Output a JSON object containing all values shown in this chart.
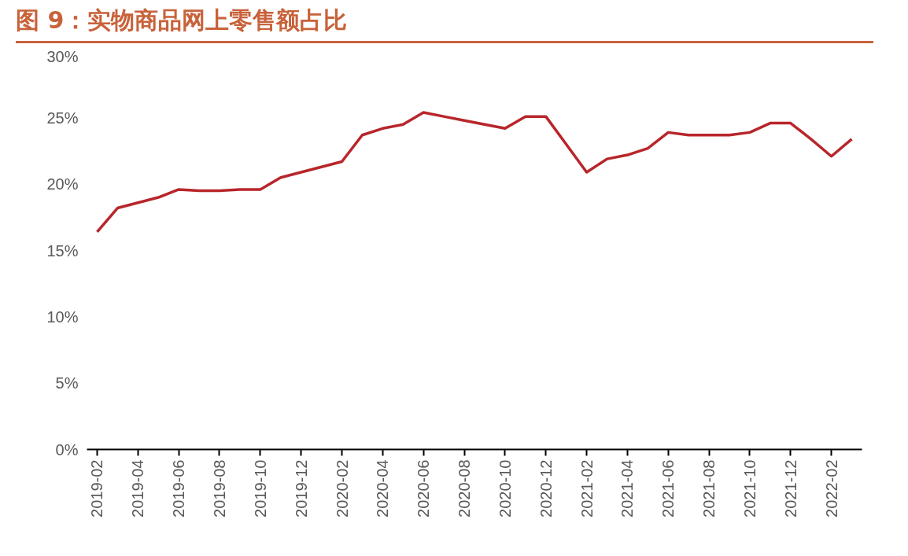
{
  "chart_data": {
    "type": "line",
    "title": "图 9：实物商品网上零售额占比",
    "categories": [
      "2019-02",
      null,
      "2019-04",
      null,
      "2019-06",
      null,
      "2019-08",
      null,
      "2019-10",
      null,
      "2019-12",
      null,
      "2020-02",
      null,
      "2020-04",
      null,
      "2020-06",
      null,
      "2020-08",
      null,
      "2020-10",
      null,
      "2020-12",
      null,
      "2021-02",
      null,
      "2021-04",
      null,
      "2021-06",
      null,
      "2021-08",
      null,
      "2021-10",
      null,
      "2021-12",
      null,
      "2022-02",
      null
    ],
    "series": [
      {
        "color": "#b8262b",
        "values": [
          16.4,
          18.2,
          18.6,
          19.0,
          19.6,
          19.5,
          19.5,
          19.6,
          19.6,
          20.5,
          20.9,
          21.3,
          21.7,
          23.7,
          24.2,
          24.5,
          25.4,
          25.1,
          24.8,
          24.5,
          24.2,
          25.1,
          25.1,
          23.0,
          20.9,
          21.9,
          22.2,
          22.7,
          23.9,
          23.7,
          23.7,
          23.7,
          23.9,
          24.6,
          24.6,
          23.4,
          22.1,
          23.4
        ]
      }
    ],
    "ylim": [
      0,
      30
    ],
    "yticks": [
      {
        "value": 0,
        "label": "0%"
      },
      {
        "value": 5,
        "label": "5%"
      },
      {
        "value": 10,
        "label": "10%"
      },
      {
        "value": 15,
        "label": "15%"
      },
      {
        "value": 20,
        "label": "20%"
      },
      {
        "value": 25,
        "label": "25%"
      },
      {
        "value": 30,
        "label": "30%"
      }
    ],
    "grid": false,
    "marker": "none",
    "line_style": "solid"
  }
}
